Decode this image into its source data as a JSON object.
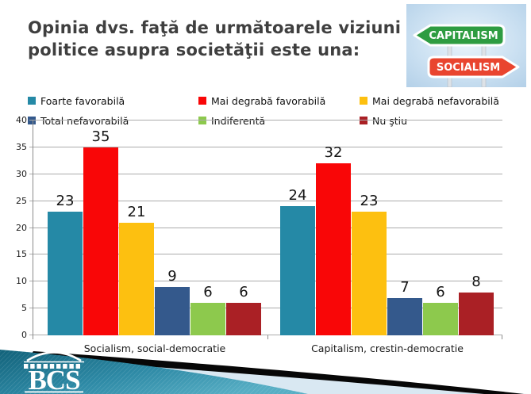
{
  "title": {
    "text": "Opinia dvs. faţă de următoarele viziuni politice asupra societăţii este una:"
  },
  "signpost": {
    "top_label": "CAPITALISM",
    "bottom_label": "SOCIALISM",
    "top_sign_color": "#2E9C41",
    "bottom_sign_color": "#E9452F"
  },
  "logo": {
    "text": "BCS"
  },
  "chart_data": {
    "type": "bar",
    "title": "Opinia dvs. faţă de următoarele viziuni politice asupra societăţii este una:",
    "categories": [
      "Socialism, social-democratie",
      "Capitalism, crestin-democratie"
    ],
    "series": [
      {
        "name": "Foarte favorabilă",
        "color": "#2589A6",
        "values": [
          23,
          24
        ]
      },
      {
        "name": "Mai degrabă favorabilă",
        "color": "#F90607",
        "values": [
          35,
          32
        ]
      },
      {
        "name": "Mai degrabă nefavorabilă",
        "color": "#FDC010",
        "values": [
          21,
          23
        ]
      },
      {
        "name": "Total nefavorabilă",
        "color": "#34598C",
        "values": [
          9,
          7
        ]
      },
      {
        "name": "Indiferentă",
        "color": "#8DC94D",
        "values": [
          6,
          6
        ]
      },
      {
        "name": "Nu ştiu",
        "color": "#AA2025",
        "values": [
          6,
          8
        ]
      }
    ],
    "ylim": [
      0,
      40
    ],
    "ytick_step": 5,
    "grid": true,
    "legend_position": "top",
    "bar_value_labels": true
  }
}
